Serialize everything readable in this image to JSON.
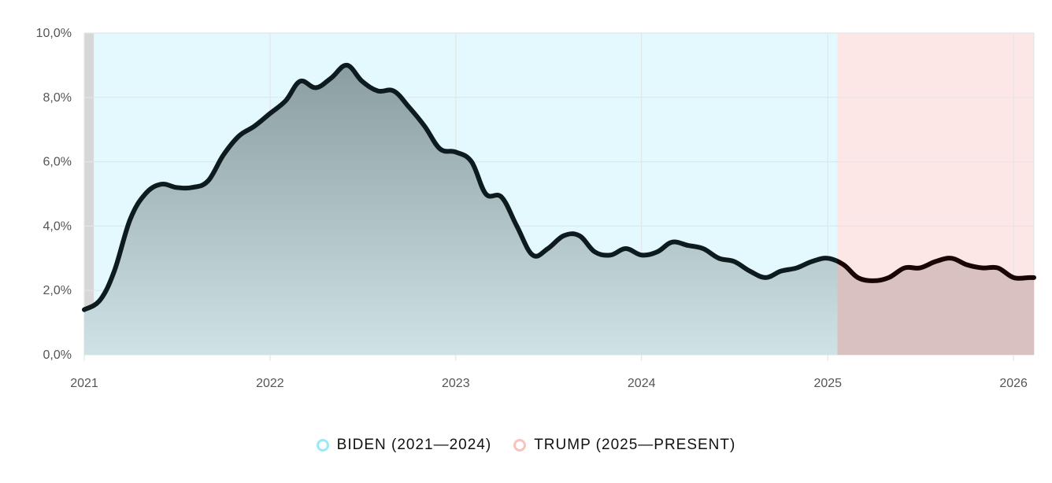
{
  "chart_data": {
    "type": "area",
    "title": "",
    "xlabel": "",
    "ylabel": "",
    "ylim": [
      0,
      10
    ],
    "xlim": [
      "2021-01-01",
      "2026-02-10"
    ],
    "y_ticks": [
      "0,0%",
      "2,0%",
      "4,0%",
      "6,0%",
      "8,0%",
      "10,0%"
    ],
    "x_ticks": [
      "2021",
      "2022",
      "2023",
      "2024",
      "2025",
      "2026"
    ],
    "grid": true,
    "legend_position": "bottom-center",
    "periods": [
      {
        "name": "BIDEN (2021—2024)",
        "start": "2021-01-20",
        "end": "2025-01-20",
        "color": "#e3f9fd",
        "legend_color": "#9ae9f7"
      },
      {
        "name": "TRUMP (2025—PRESENT)",
        "start": "2025-01-20",
        "end": "2026-02-10",
        "color": "#fde6e6",
        "legend_color": "#f9c3bd"
      }
    ],
    "series": [
      {
        "x": [
          "2021-01",
          "2021-02",
          "2021-03",
          "2021-04",
          "2021-05",
          "2021-06",
          "2021-07",
          "2021-08",
          "2021-09",
          "2021-10",
          "2021-11",
          "2021-12",
          "2022-01",
          "2022-02",
          "2022-03",
          "2022-04",
          "2022-05",
          "2022-06",
          "2022-07",
          "2022-08",
          "2022-09",
          "2022-10",
          "2022-11",
          "2022-12",
          "2023-01",
          "2023-02",
          "2023-03",
          "2023-04",
          "2023-05",
          "2023-06",
          "2023-07",
          "2023-08",
          "2023-09",
          "2023-10",
          "2023-11",
          "2023-12",
          "2024-01",
          "2024-02",
          "2024-03",
          "2024-04",
          "2024-05",
          "2024-06",
          "2024-07",
          "2024-08",
          "2024-09",
          "2024-10",
          "2024-11",
          "2024-12",
          "2025-01",
          "2025-02",
          "2025-03",
          "2025-04",
          "2025-05",
          "2025-06",
          "2025-07",
          "2025-08",
          "2025-09",
          "2025-10",
          "2025-11",
          "2025-12",
          "2026-01",
          "2026-02"
        ],
        "values": [
          1.4,
          1.7,
          2.6,
          4.2,
          5.0,
          5.3,
          5.2,
          5.2,
          5.4,
          6.2,
          6.8,
          7.1,
          7.5,
          7.9,
          8.5,
          8.3,
          8.6,
          9.0,
          8.5,
          8.2,
          8.2,
          7.7,
          7.1,
          6.4,
          6.3,
          6.0,
          5.0,
          4.9,
          4.0,
          3.1,
          3.3,
          3.7,
          3.7,
          3.2,
          3.1,
          3.3,
          3.1,
          3.2,
          3.5,
          3.4,
          3.3,
          3.0,
          2.9,
          2.6,
          2.4,
          2.6,
          2.7,
          2.9,
          3.0,
          2.8,
          2.4,
          2.3,
          2.4,
          2.7,
          2.7,
          2.9,
          3.0,
          2.8,
          2.7,
          2.7,
          2.4,
          2.4
        ]
      }
    ]
  },
  "colors": {
    "line": "#0d1b1e",
    "line_trump": "#1a0505",
    "fill_top": "#8a9ea1",
    "fill_bottom": "#cfe2e6",
    "fill_trump": "#d9c1c1",
    "grid": "#e2e6e8",
    "pre_period": "#d7d7d7"
  }
}
